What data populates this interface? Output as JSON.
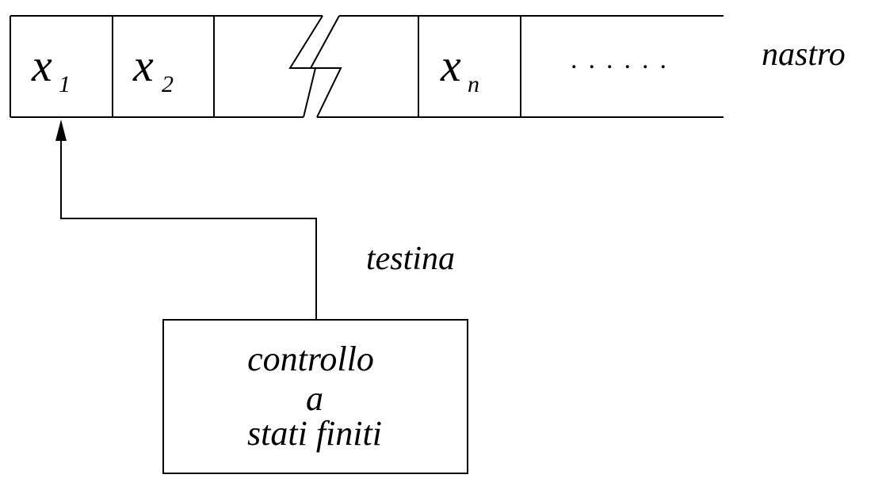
{
  "tape": {
    "label": "nastro",
    "cells": [
      {
        "symbol": "x",
        "subscript": "1"
      },
      {
        "symbol": "x",
        "subscript": "2"
      },
      {
        "symbol": "",
        "subscript": ""
      },
      {
        "symbol": "",
        "subscript": ""
      },
      {
        "symbol": "x",
        "subscript": "n"
      },
      {
        "symbol": "......",
        "subscript": ""
      }
    ]
  },
  "head": {
    "label": "testina"
  },
  "control": {
    "lines": [
      "controllo",
      "a",
      "stati finiti"
    ]
  }
}
